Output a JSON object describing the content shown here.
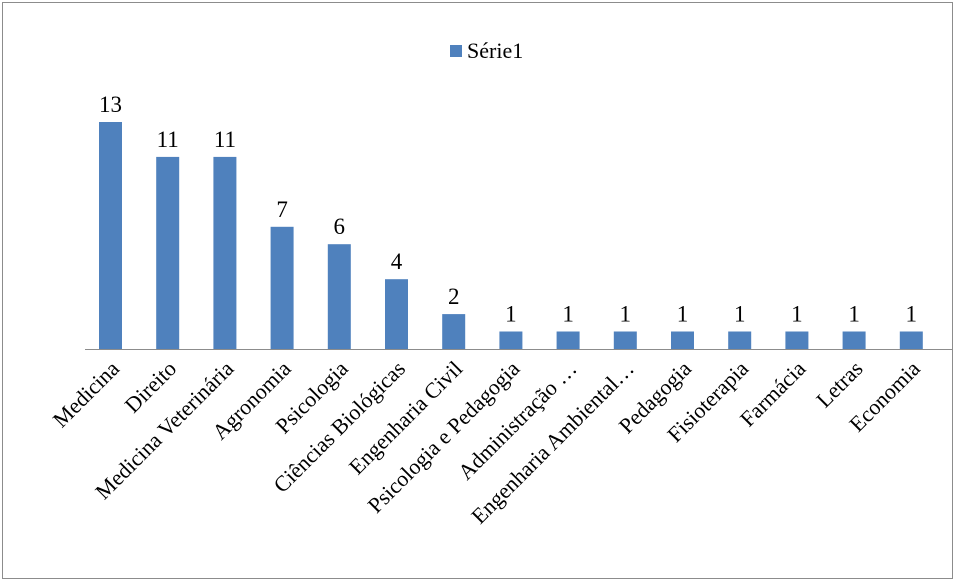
{
  "chart_data": {
    "type": "bar",
    "categories": [
      "Medicina",
      "Direito",
      "Medicina Veterinária",
      "Agronomia",
      "Psicologia",
      "Ciências Biológicas",
      "Engenharia Civil",
      "Psicologia e Pedagogia",
      "Administração …",
      "Engenharia Ambiental…",
      "Pedagogia",
      "Fisioterapia",
      "Farmácia",
      "Letras",
      "Economia"
    ],
    "series": [
      {
        "name": "Série1",
        "values": [
          13,
          11,
          11,
          7,
          6,
          4,
          2,
          1,
          1,
          1,
          1,
          1,
          1,
          1,
          1
        ]
      }
    ],
    "data_labels": [
      "13",
      "11",
      "11",
      "7",
      "6",
      "4",
      "2",
      "1",
      "1",
      "1",
      "1",
      "1",
      "1",
      "1",
      "1"
    ],
    "legend_position": "top",
    "grid": false,
    "ylim": [
      0,
      13
    ],
    "colors": {
      "bar": "#4F81BD"
    }
  }
}
